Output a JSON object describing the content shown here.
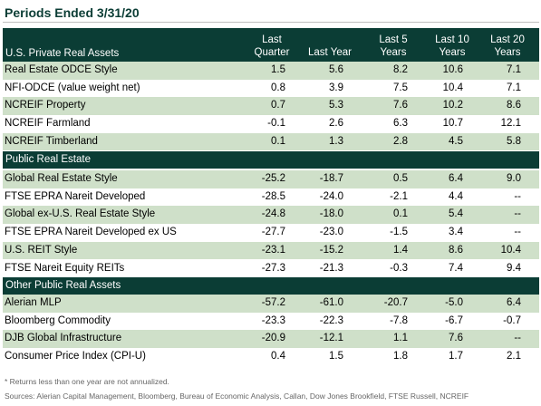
{
  "title": "Periods Ended 3/31/20",
  "header": {
    "label": "U.S. Private Real Assets",
    "columns": [
      "Last\nQuarter",
      "Last Year",
      "Last 5\nYears",
      "Last 10\nYears",
      "Last 20\nYears"
    ]
  },
  "sections": [
    {
      "name": "U.S. Private Real Assets",
      "rows": [
        {
          "name": "Real Estate ODCE Style",
          "values": [
            "1.5",
            "5.6",
            "8.2",
            "10.6",
            "7.1"
          ]
        },
        {
          "name": "NFI-ODCE (value weight net)",
          "values": [
            "0.8",
            "3.9",
            "7.5",
            "10.4",
            "7.1"
          ]
        },
        {
          "name": "NCREIF Property",
          "values": [
            "0.7",
            "5.3",
            "7.6",
            "10.2",
            "8.6"
          ]
        },
        {
          "name": "NCREIF Farmland",
          "values": [
            "-0.1",
            "2.6",
            "6.3",
            "10.7",
            "12.1"
          ]
        },
        {
          "name": "NCREIF Timberland",
          "values": [
            "0.1",
            "1.3",
            "2.8",
            "4.5",
            "5.8"
          ]
        }
      ]
    },
    {
      "name": "Public Real Estate",
      "rows": [
        {
          "name": "Global Real Estate Style",
          "values": [
            "-25.2",
            "-18.7",
            "0.5",
            "6.4",
            "9.0"
          ]
        },
        {
          "name": "FTSE EPRA Nareit Developed",
          "values": [
            "-28.5",
            "-24.0",
            "-2.1",
            "4.4",
            "--"
          ]
        },
        {
          "name": "Global ex-U.S. Real Estate Style",
          "values": [
            "-24.8",
            "-18.0",
            "0.1",
            "5.4",
            "--"
          ]
        },
        {
          "name": "FTSE EPRA Nareit Developed ex US",
          "values": [
            "-27.7",
            "-23.0",
            "-1.5",
            "3.4",
            "--"
          ]
        },
        {
          "name": "U.S. REIT Style",
          "values": [
            "-23.1",
            "-15.2",
            "1.4",
            "8.6",
            "10.4"
          ]
        },
        {
          "name": "FTSE Nareit Equity REITs",
          "values": [
            "-27.3",
            "-21.3",
            "-0.3",
            "7.4",
            "9.4"
          ]
        }
      ]
    },
    {
      "name": "Other Public Real Assets",
      "rows": [
        {
          "name": "Alerian MLP",
          "values": [
            "-57.2",
            "-61.0",
            "-20.7",
            "-5.0",
            "6.4"
          ]
        },
        {
          "name": "Bloomberg Commodity",
          "values": [
            "-23.3",
            "-22.3",
            "-7.8",
            "-6.7",
            "-0.7"
          ]
        },
        {
          "name": "DJB Global Infrastructure",
          "values": [
            "-20.9",
            "-12.1",
            "1.1",
            "7.6",
            "--"
          ]
        },
        {
          "name": "Consumer Price Index (CPI-U)",
          "values": [
            "0.4",
            "1.5",
            "1.8",
            "1.7",
            "2.1"
          ]
        }
      ]
    }
  ],
  "footnote": "* Returns less than one year are not annualized.",
  "sources": "Sources: Alerian Capital Management, Bloomberg, Bureau of Economic Analysis, Callan, Dow Jones Brookfield, FTSE Russell, NCREIF",
  "colors": {
    "header_bg": "#0b3d35",
    "shaded_row": "#cfe0c9",
    "title": "#0b3d35"
  }
}
